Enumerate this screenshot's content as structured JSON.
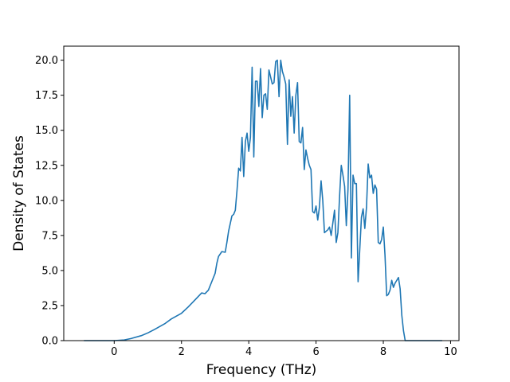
{
  "chart_data": {
    "type": "line",
    "title": "",
    "xlabel": "Frequency (THz)",
    "ylabel": "Density of States",
    "xlim": [
      -1.5,
      10.25
    ],
    "ylim": [
      0,
      21
    ],
    "x_ticks": [
      0,
      2,
      4,
      6,
      8,
      10
    ],
    "y_ticks": [
      0.0,
      2.5,
      5.0,
      7.5,
      10.0,
      12.5,
      15.0,
      17.5,
      20.0
    ],
    "x_tick_labels": [
      "0",
      "2",
      "4",
      "6",
      "8",
      "10"
    ],
    "y_tick_labels": [
      "0.0",
      "2.5",
      "5.0",
      "7.5",
      "10.0",
      "12.5",
      "15.0",
      "17.5",
      "20.0"
    ],
    "grid": false,
    "legend": "none",
    "series": [
      {
        "color": "#1f77b4",
        "x": [
          -0.9,
          -0.5,
          0.0,
          0.3,
          0.5,
          0.8,
          1.0,
          1.2,
          1.5,
          1.7,
          1.85,
          2.0,
          2.2,
          2.4,
          2.6,
          2.7,
          2.8,
          2.9,
          3.0,
          3.05,
          3.1,
          3.2,
          3.3,
          3.35,
          3.4,
          3.5,
          3.55,
          3.6,
          3.65,
          3.7,
          3.75,
          3.8,
          3.85,
          3.9,
          3.95,
          4.0,
          4.05,
          4.1,
          4.15,
          4.2,
          4.25,
          4.3,
          4.35,
          4.4,
          4.45,
          4.5,
          4.55,
          4.6,
          4.65,
          4.7,
          4.75,
          4.8,
          4.85,
          4.9,
          4.95,
          5.0,
          5.05,
          5.1,
          5.15,
          5.2,
          5.25,
          5.3,
          5.35,
          5.4,
          5.45,
          5.5,
          5.55,
          5.6,
          5.65,
          5.7,
          5.75,
          5.8,
          5.85,
          5.9,
          5.95,
          6.0,
          6.05,
          6.1,
          6.15,
          6.2,
          6.25,
          6.3,
          6.35,
          6.4,
          6.45,
          6.5,
          6.55,
          6.6,
          6.65,
          6.7,
          6.75,
          6.8,
          6.85,
          6.9,
          6.95,
          7.0,
          7.05,
          7.1,
          7.15,
          7.2,
          7.25,
          7.3,
          7.35,
          7.4,
          7.45,
          7.5,
          7.55,
          7.6,
          7.65,
          7.7,
          7.75,
          7.8,
          7.85,
          7.9,
          7.95,
          8.0,
          8.05,
          8.1,
          8.15,
          8.2,
          8.25,
          8.3,
          8.35,
          8.4,
          8.45,
          8.5,
          8.55,
          8.6,
          8.65,
          8.7,
          8.75,
          8.8,
          8.85,
          8.9,
          9.0,
          9.4,
          9.75
        ],
        "y": [
          0.0,
          0.0,
          0.0,
          0.05,
          0.15,
          0.35,
          0.55,
          0.8,
          1.2,
          1.55,
          1.75,
          1.95,
          2.4,
          2.9,
          3.4,
          3.35,
          3.6,
          4.2,
          4.8,
          5.5,
          6.0,
          6.35,
          6.3,
          7.0,
          7.8,
          8.9,
          9.0,
          9.3,
          10.7,
          12.3,
          12.1,
          14.5,
          11.7,
          14.2,
          14.8,
          13.5,
          14.5,
          19.5,
          13.1,
          18.5,
          18.5,
          16.7,
          19.4,
          15.9,
          17.5,
          17.6,
          16.5,
          19.3,
          18.8,
          18.3,
          18.4,
          19.9,
          20.0,
          17.4,
          20.0,
          19.2,
          18.8,
          18.3,
          14.0,
          18.6,
          16.0,
          17.4,
          14.8,
          17.5,
          18.4,
          14.2,
          14.1,
          15.2,
          12.2,
          13.6,
          13.0,
          12.5,
          12.2,
          9.2,
          9.1,
          9.6,
          8.6,
          9.5,
          11.4,
          10.0,
          7.7,
          7.8,
          7.9,
          8.1,
          7.5,
          8.4,
          9.3,
          7.0,
          7.7,
          10.3,
          12.5,
          11.8,
          11.0,
          8.2,
          10.8,
          17.5,
          5.9,
          11.8,
          11.2,
          11.2,
          4.2,
          6.5,
          8.8,
          9.4,
          8.0,
          9.5,
          12.6,
          11.6,
          11.8,
          10.5,
          11.1,
          10.8,
          7.0,
          6.9,
          7.2,
          8.1,
          6.1,
          3.2,
          3.3,
          3.6,
          4.3,
          3.8,
          4.1,
          4.3,
          4.5,
          3.7,
          1.8,
          0.7,
          0.0,
          0.0,
          0.0,
          0.0,
          0.0,
          0.0,
          0.0,
          0.0,
          0.0
        ]
      }
    ]
  }
}
